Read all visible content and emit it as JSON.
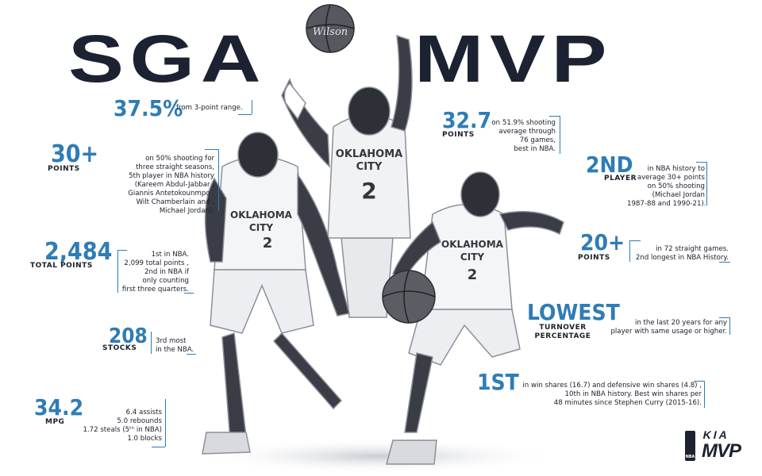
{
  "title": {
    "left": "SGA",
    "right": "MVP"
  },
  "colors": {
    "accent": "#2f7cb6",
    "ink": "#1d2232",
    "background": "#ffffff"
  },
  "stats": {
    "three_pct": {
      "value": "37.5%",
      "desc": "from 3-point range."
    },
    "thirty_plus": {
      "value": "30+",
      "label": "POINTS",
      "desc": "on 50% shooting for\nthree straight seasons,\n5th player in NBA history\n(Kareem Abdul-Jabbar ,\nGiannis Antetokounmpo ,\nWilt Chamberlain and ,\nMichael Jordan)."
    },
    "total_points": {
      "value": "2,484",
      "label": "TOTAL POINTS",
      "desc": "1st in NBA.\n2,099 total points ,\n2nd in NBA if\nonly counting\nfirst three quarters."
    },
    "stocks": {
      "value": "208",
      "label": "STOCKS",
      "desc": "3rd most\nin the NBA."
    },
    "mpg": {
      "value": "34.2",
      "label": "MPG",
      "desc": "6.4 assists\n5.0 rebounds\n1.72 steals (5ᵗʰ in NBA)\n1.0 blocks"
    },
    "ppg": {
      "value": "32.7",
      "label": "POINTS",
      "desc": "on 51.9% shooting\naverage through\n76 games,\nbest in NBA."
    },
    "second": {
      "value": "2ND",
      "label": "PLAYER",
      "desc": "in NBA history to\naverage 30+ points\non 50% shooting\n(Michael Jordan\n1987-88 and 1990-21)."
    },
    "twenty_plus": {
      "value": "20+",
      "label": "POINTS",
      "desc": "in 72 straight games.\n2nd longest in NBA History."
    },
    "lowest": {
      "value": "LOWEST",
      "label": "TURNOVER\nPERCENTAGE",
      "desc": "in the last 20 years for any\nplayer with same usage or higher."
    },
    "first": {
      "value": "1ST",
      "desc": "in win shares (16.7) and defensive win shares (4.8) ,\n10th in NBA history. Best win shares per\n48 minutes since Stephen Curry (2015-16)."
    }
  },
  "players": {
    "jersey_team": "OKLAHOMA\nCITY",
    "jersey_number": "2",
    "ball_brand": "Wilson"
  },
  "logos": {
    "kia_text": "KIA",
    "mvp_text": "MVP",
    "nba_text": "NBA"
  }
}
